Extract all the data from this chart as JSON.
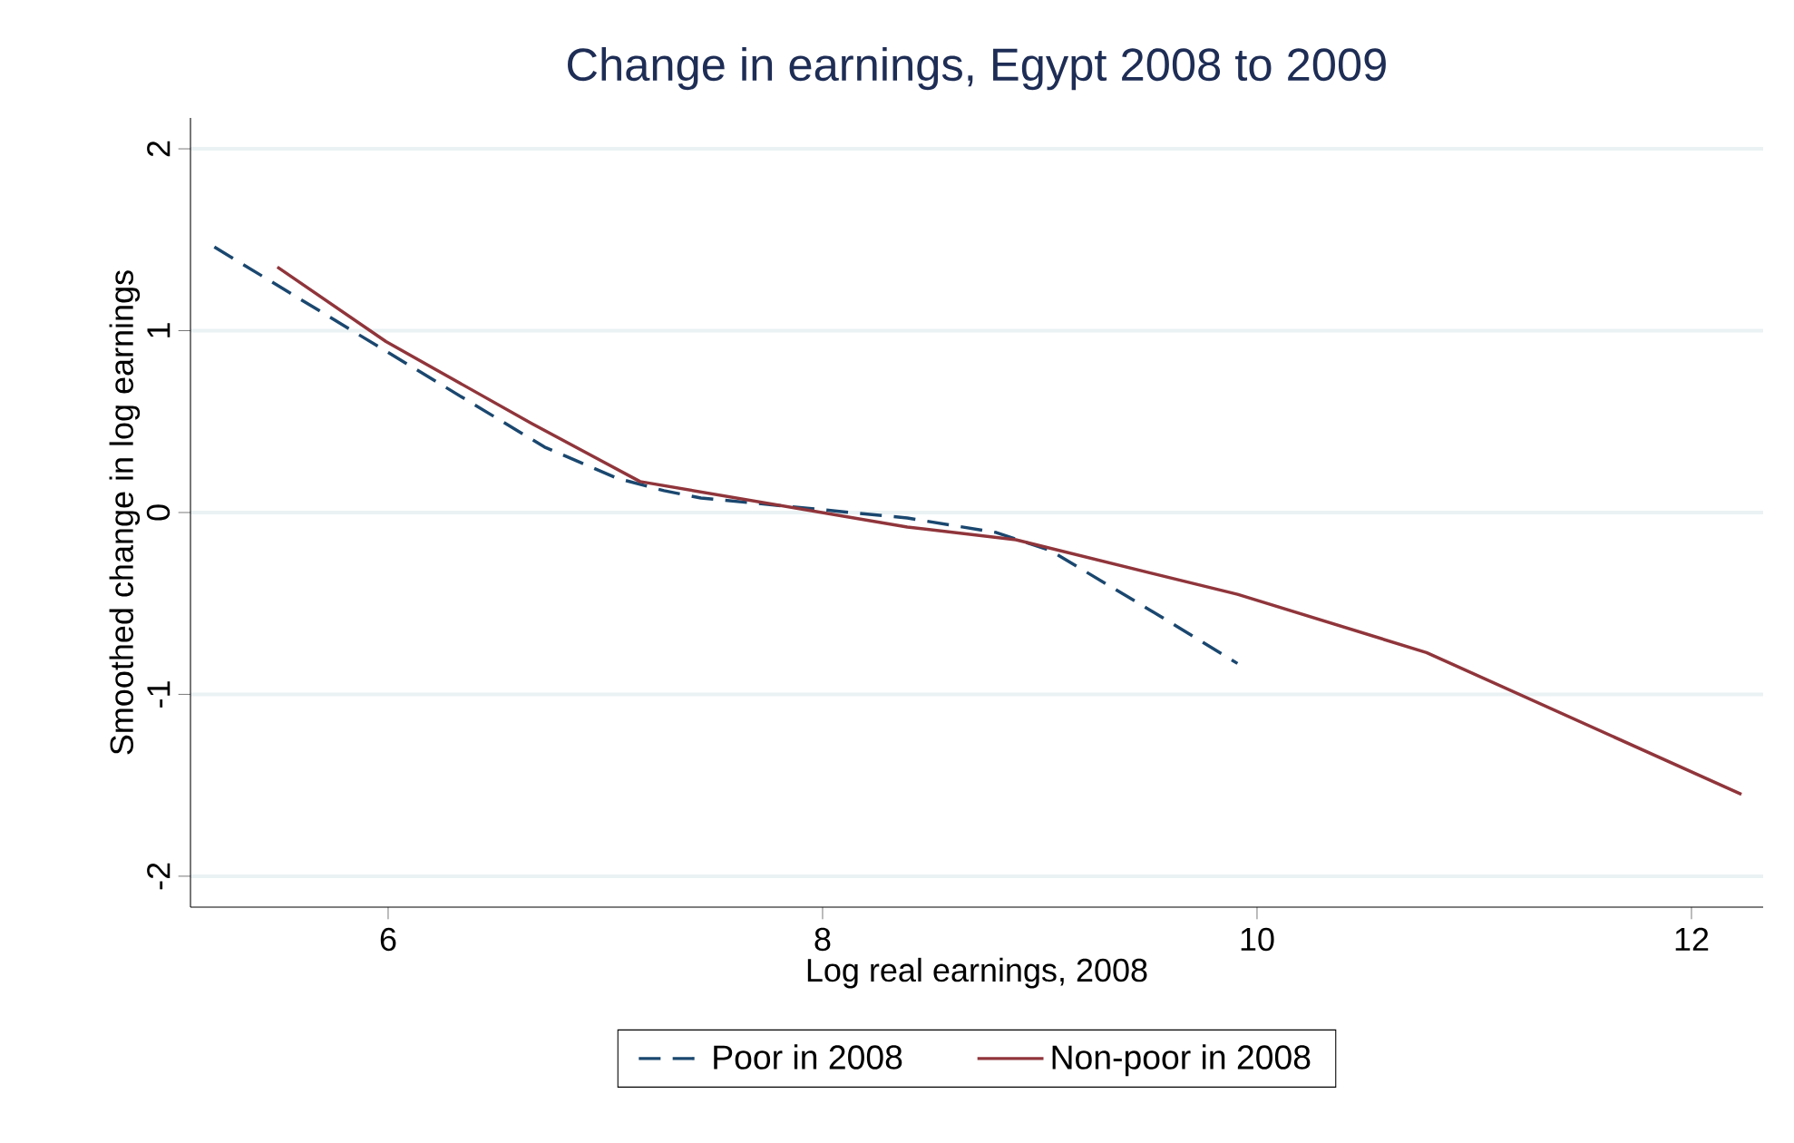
{
  "chart_data": {
    "type": "line",
    "title": "Change in earnings, Egypt 2008 to 2009",
    "xlabel": "Log real earnings, 2008",
    "ylabel": "Smoothed change in log earnings",
    "xlim": [
      5.09,
      12.33
    ],
    "ylim": [
      -2.17,
      2.17
    ],
    "xticks": [
      6,
      8,
      10,
      12
    ],
    "yticks": [
      -2,
      -1,
      0,
      1,
      2
    ],
    "grid": "y",
    "legend": "bottom",
    "series": [
      {
        "name": "Poor in 2008",
        "color": "#1a476f",
        "line_style": "dashed",
        "x": [
          5.2,
          6.0,
          6.72,
          7.05,
          7.27,
          7.44,
          8.39,
          8.8,
          9.05,
          9.54,
          9.91
        ],
        "values": [
          1.46,
          0.88,
          0.36,
          0.19,
          0.12,
          0.08,
          -0.03,
          -0.11,
          -0.21,
          -0.56,
          -0.83
        ]
      },
      {
        "name": "Non-poor in 2008",
        "color": "#90353b",
        "line_style": "solid",
        "x": [
          5.49,
          5.99,
          6.66,
          7.16,
          8.39,
          8.89,
          9.91,
          10.78,
          12.23
        ],
        "values": [
          1.35,
          0.94,
          0.49,
          0.17,
          -0.08,
          -0.15,
          -0.45,
          -0.77,
          -1.55
        ]
      }
    ]
  }
}
